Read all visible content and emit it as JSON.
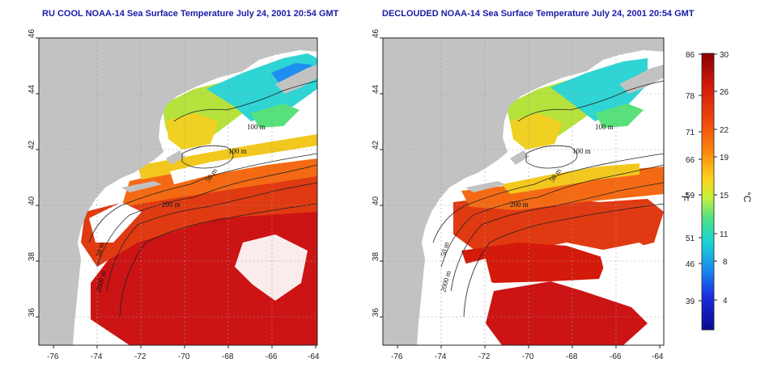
{
  "titles": {
    "left": "RU COOL NOAA-14 Sea Surface Temperature July 24, 2001 20:54 GMT",
    "right": "DECLOUDED NOAA-14 Sea Surface Temperature July 24, 2001 20:54 GMT"
  },
  "axes": {
    "lon_ticks": [
      "-76",
      "-74",
      "-72",
      "-70",
      "-68",
      "-66",
      "-64"
    ],
    "lat_ticks": [
      "36",
      "38",
      "40",
      "42",
      "44",
      "46"
    ]
  },
  "contour_labels": {
    "left": [
      "100 m",
      "100 m",
      "50 m",
      "200 m",
      "50 m",
      "2000 m"
    ],
    "right": [
      "100 m",
      "100 m",
      "50 m",
      "200 m",
      "50 m",
      "2000 m"
    ]
  },
  "colorbar": {
    "fahrenheit_ticks": [
      "86",
      "78",
      "71",
      "66",
      "59",
      "51",
      "46",
      "39"
    ],
    "celsius_ticks": [
      "30",
      "26",
      "22",
      "19",
      "15",
      "11",
      "8",
      "4"
    ],
    "fahrenheit_label": "°F",
    "celsius_label": "°C",
    "colors": [
      "#8a0000",
      "#d41a0a",
      "#f04a0a",
      "#fb8a10",
      "#ffd21a",
      "#c8f03a",
      "#4ce08a",
      "#1ad6d6",
      "#1a8cf0",
      "#1a2ee0",
      "#0a0a8c"
    ]
  },
  "colors": {
    "land": "#c2c2c2",
    "cloud": "#ffffff",
    "contour": "#222222",
    "grid": "#9a9a9a"
  }
}
